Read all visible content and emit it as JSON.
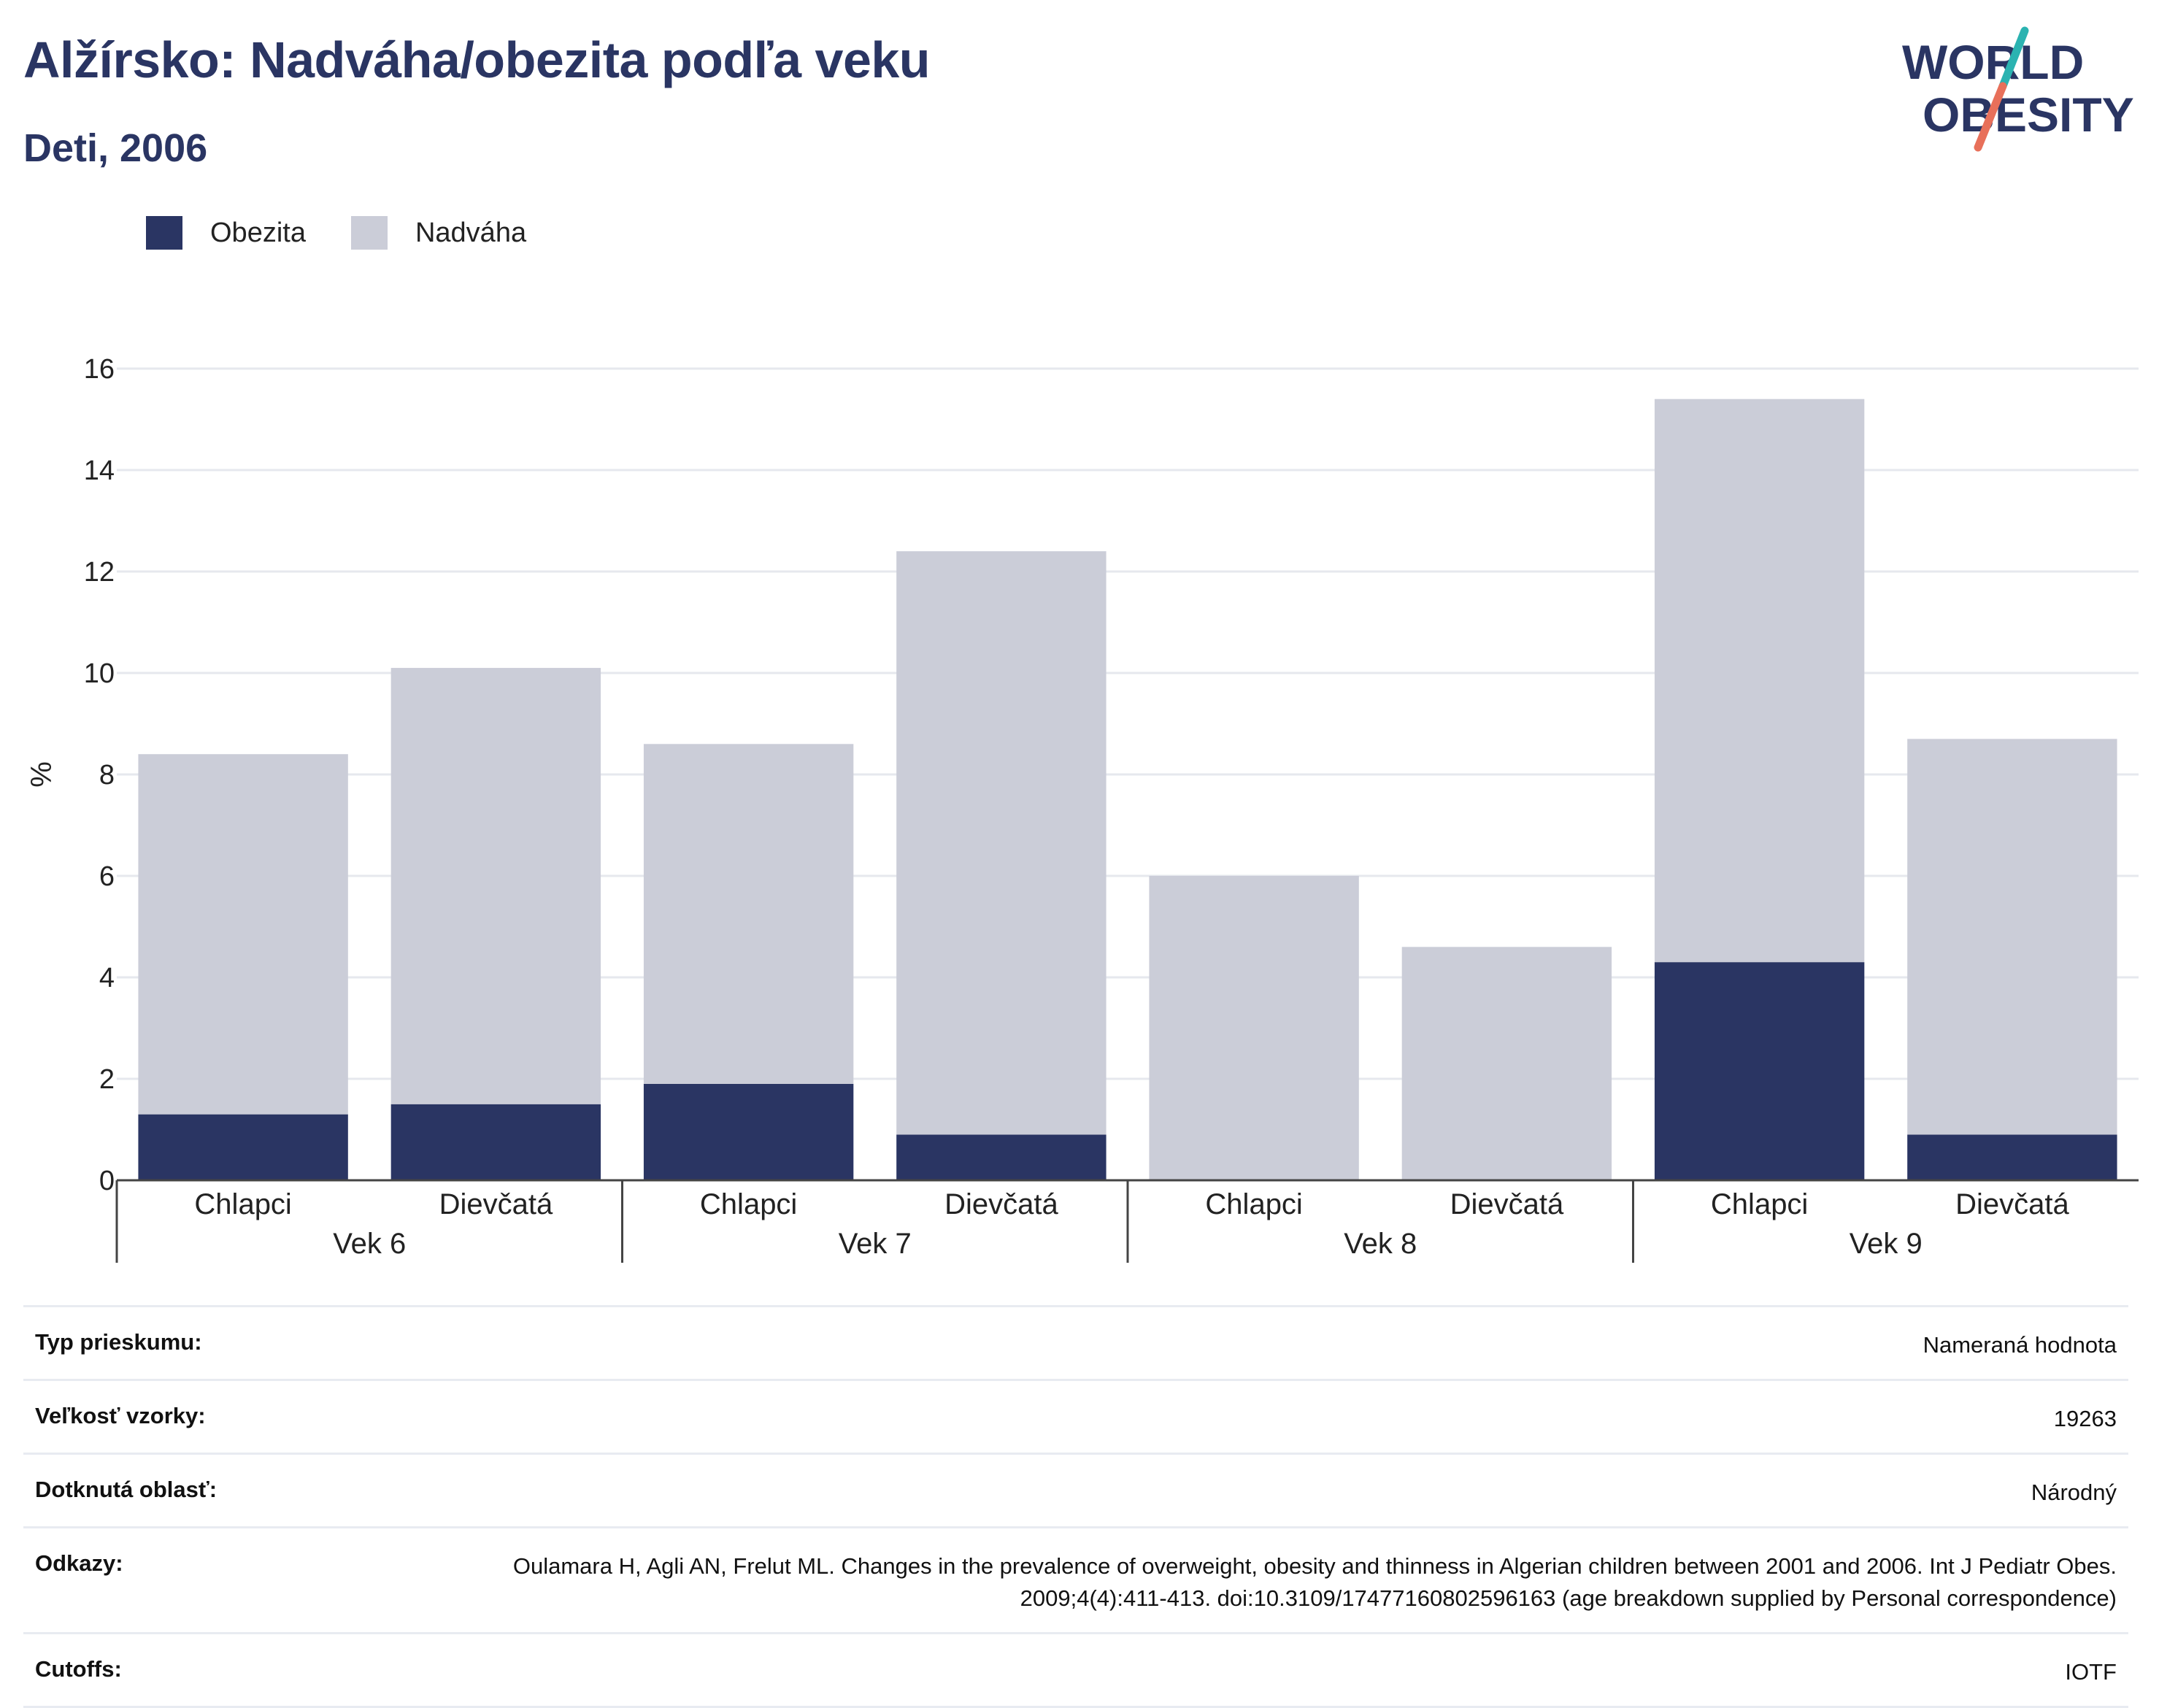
{
  "header": {
    "title": "Alžírsko: Nadváha/obezita podľa veku",
    "subtitle": "Deti, 2006"
  },
  "logo": {
    "line1": "WORLD",
    "line2": "OBESITY",
    "colors": {
      "navy": "#2a3563",
      "teal": "#2bb3b1",
      "coral": "#e8705a"
    }
  },
  "legend": [
    {
      "label": "Obezita",
      "color": "#2a3563"
    },
    {
      "label": "Nadváha",
      "color": "#cbcdd8"
    }
  ],
  "chart_data": {
    "type": "bar",
    "stacked": true,
    "ylabel": "%",
    "ylim": [
      0,
      16
    ],
    "yticks": [
      0,
      2,
      4,
      6,
      8,
      10,
      12,
      14,
      16
    ],
    "grid": true,
    "legend_position": "top-left",
    "groups": [
      "Vek 6",
      "Vek 7",
      "Vek 8",
      "Vek 9"
    ],
    "categories": [
      "Chlapci",
      "Dievčatá",
      "Chlapci",
      "Dievčatá",
      "Chlapci",
      "Dievčatá",
      "Chlapci",
      "Dievčatá"
    ],
    "series": [
      {
        "name": "Obezita",
        "color": "#2a3563",
        "values": [
          1.3,
          1.5,
          1.9,
          0.9,
          0.0,
          0.0,
          4.3,
          0.9
        ]
      },
      {
        "name": "Nadváha",
        "color": "#cbcdd8",
        "values": [
          7.1,
          8.6,
          6.7,
          11.5,
          6.0,
          4.6,
          11.1,
          7.8
        ]
      }
    ]
  },
  "meta": [
    {
      "label": "Typ prieskumu:",
      "value": "Nameraná hodnota"
    },
    {
      "label": "Veľkosť vzorky:",
      "value": "19263"
    },
    {
      "label": "Dotknutá oblasť:",
      "value": "Národný"
    },
    {
      "label": "Odkazy:",
      "value": "Oulamara H, Agli AN, Frelut ML. Changes in the prevalence of overweight, obesity and thinness in Algerian children between 2001 and 2006. Int J Pediatr Obes. 2009;4(4):411-413. doi:10.3109/17477160802596163 (age breakdown supplied by Personal correspondence)"
    },
    {
      "label": "Cutoffs:",
      "value": "IOTF"
    }
  ]
}
